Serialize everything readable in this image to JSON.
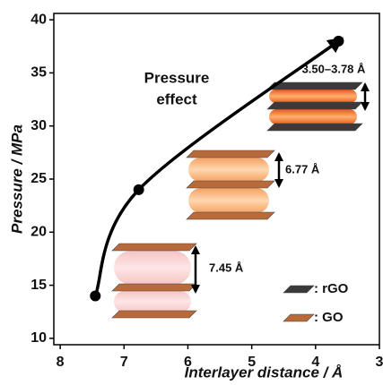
{
  "chart_data": {
    "type": "line",
    "x_label": "Interlayer distance / Å",
    "y_label": "Pressure / MPa",
    "series": [
      {
        "color": "#000000",
        "x": [
          7.45,
          6.77,
          3.64
        ],
        "values": [
          14,
          24,
          38
        ]
      }
    ],
    "xlim": [
      8.1,
      3.0
    ],
    "xticks": [
      8,
      7,
      6,
      5,
      4,
      3
    ],
    "ylim": [
      9.4,
      40.6
    ],
    "yticks": [
      10,
      15,
      20,
      25,
      30,
      35,
      40
    ],
    "grid": false,
    "effect_label": [
      "Pressure",
      "effect"
    ],
    "spacing_labels": [
      "3.50–3.78 Å",
      "6.77 Å",
      "7.45 Å"
    ],
    "legend": [
      ": rGO",
      ": GO"
    ]
  }
}
